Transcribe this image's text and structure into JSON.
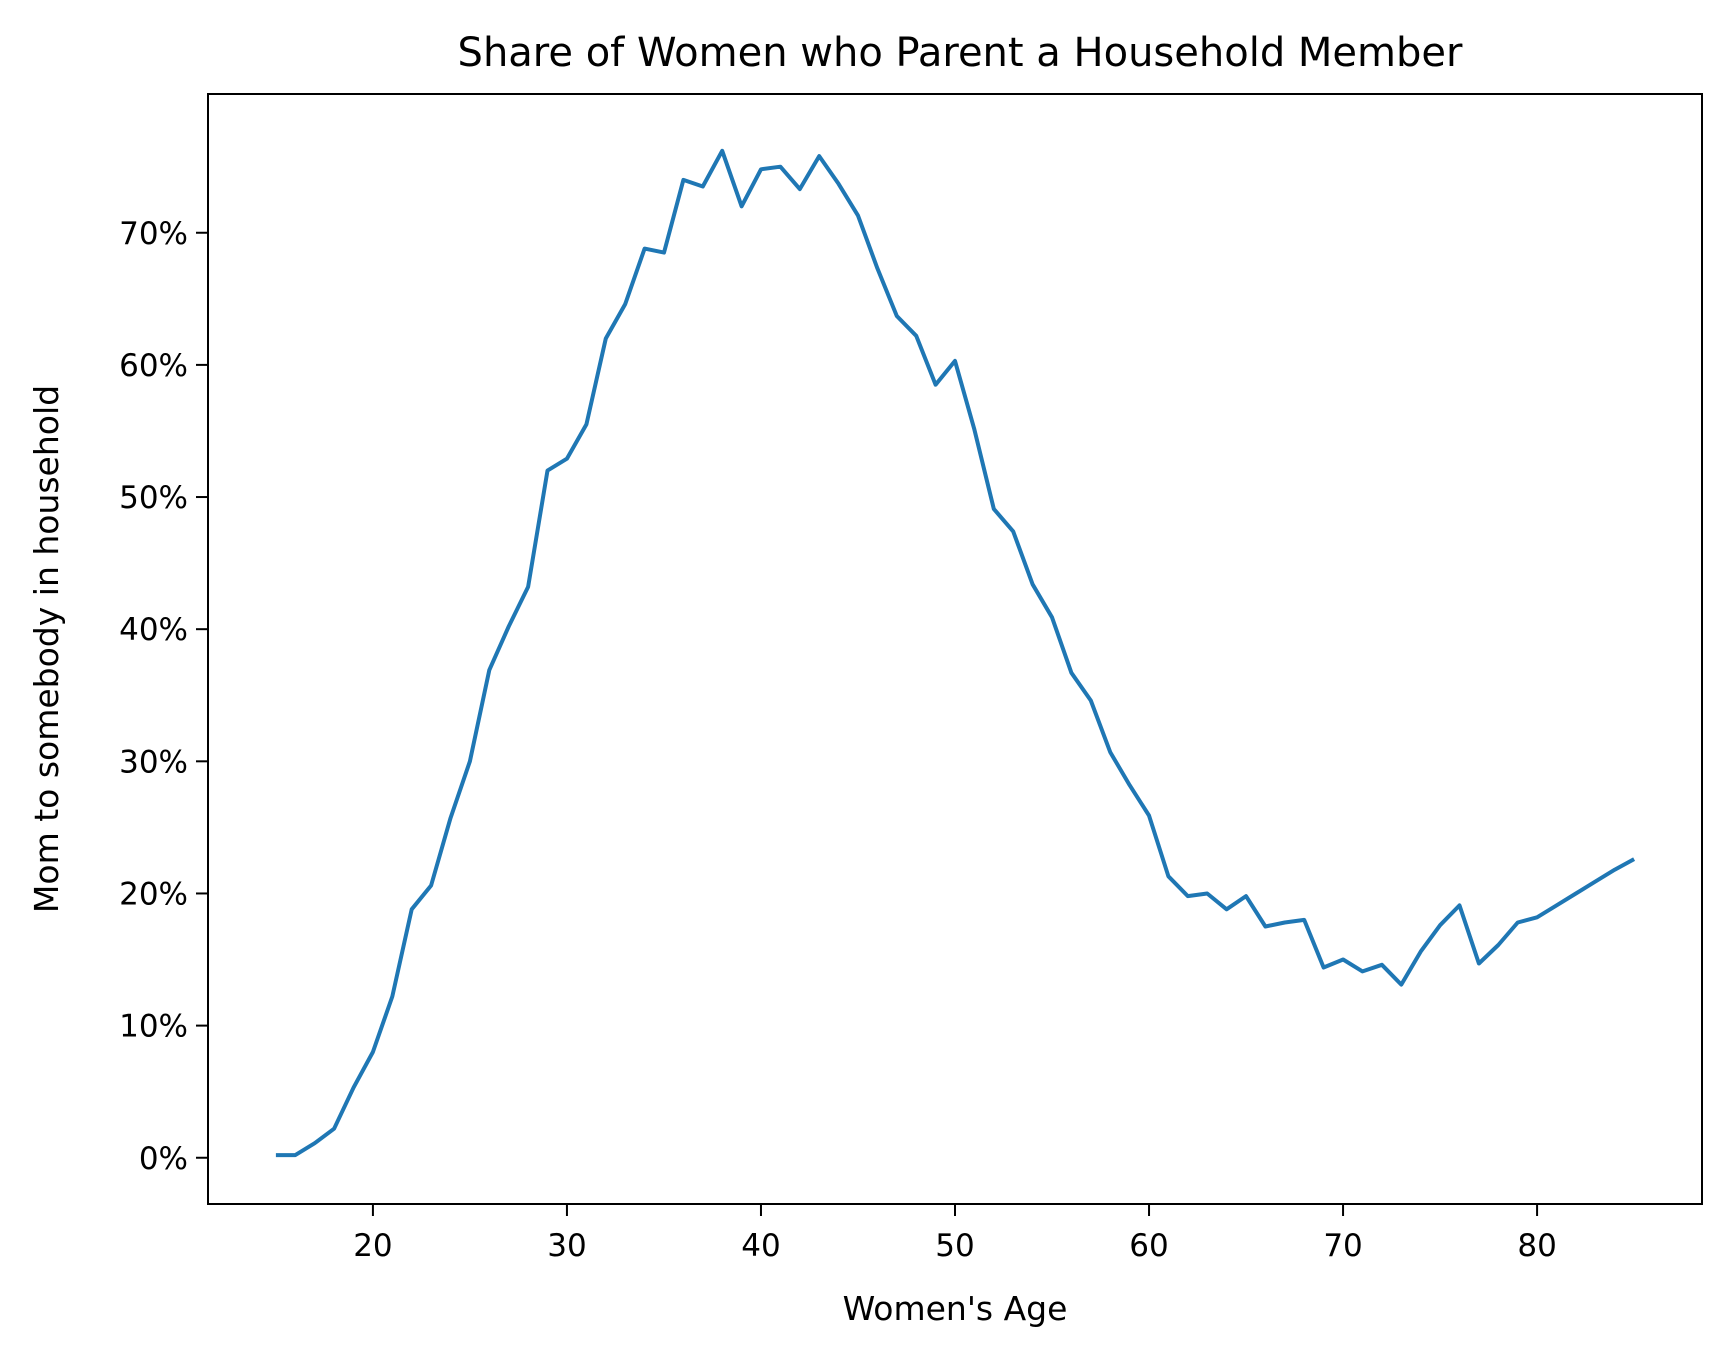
{
  "chart_data": {
    "type": "line",
    "title": "Share of Women who Parent a Household Member",
    "xlabel": "Women's Age",
    "ylabel": "Mom to somebody in household",
    "xlim": [
      11.5,
      88.5
    ],
    "ylim": [
      -0.035,
      0.805
    ],
    "xticks": [
      20,
      30,
      40,
      50,
      60,
      70,
      80
    ],
    "xtick_labels": [
      "20",
      "30",
      "40",
      "50",
      "60",
      "70",
      "80"
    ],
    "yticks": [
      0,
      0.1,
      0.2,
      0.3,
      0.4,
      0.5,
      0.6,
      0.7
    ],
    "ytick_labels": [
      "0%",
      "10%",
      "20%",
      "30%",
      "40%",
      "50%",
      "60%",
      "70%"
    ],
    "grid": false,
    "legend": "none",
    "line_color": "#1f77b4",
    "series": [
      {
        "x": [
          15,
          16,
          17,
          18,
          19,
          20,
          21,
          22,
          23,
          24,
          25,
          26,
          27,
          28,
          29,
          30,
          31,
          32,
          33,
          34,
          35,
          36,
          37,
          38,
          39,
          40,
          41,
          42,
          43,
          44,
          45,
          46,
          47,
          48,
          49,
          50,
          51,
          52,
          53,
          54,
          55,
          56,
          57,
          58,
          59,
          60,
          61,
          62,
          63,
          64,
          65,
          66,
          67,
          68,
          69,
          70,
          71,
          72,
          73,
          74,
          75,
          76,
          77,
          78,
          79,
          80,
          81,
          82,
          83,
          84,
          85
        ],
        "values": [
          0.002,
          0.002,
          0.011,
          0.022,
          0.053,
          0.08,
          0.122,
          0.188,
          0.206,
          0.257,
          0.3,
          0.369,
          0.402,
          0.432,
          0.52,
          0.529,
          0.555,
          0.62,
          0.646,
          0.688,
          0.685,
          0.74,
          0.735,
          0.762,
          0.72,
          0.748,
          0.75,
          0.733,
          0.758,
          0.737,
          0.713,
          0.673,
          0.637,
          0.622,
          0.585,
          0.603,
          0.551,
          0.491,
          0.474,
          0.434,
          0.409,
          0.367,
          0.346,
          0.307,
          0.282,
          0.259,
          0.213,
          0.198,
          0.2,
          0.188,
          0.198,
          0.175,
          0.178,
          0.18,
          0.144,
          0.15,
          0.141,
          0.146,
          0.131,
          0.156,
          0.176,
          0.191,
          0.147,
          0.161,
          0.178,
          0.182,
          0.191,
          0.2,
          0.209,
          0.218,
          0.226
        ]
      }
    ]
  }
}
